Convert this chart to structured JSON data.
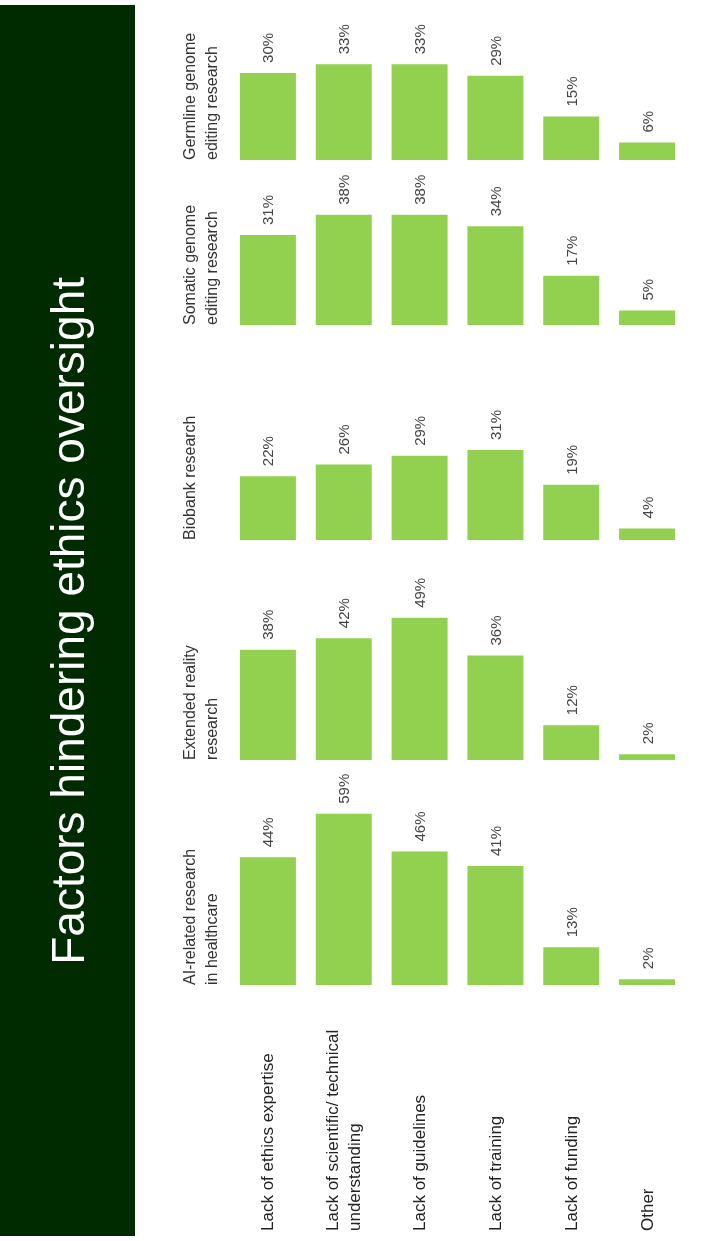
{
  "chart_data": [
    {
      "type": "other",
      "title": "Factors hindering ethics oversight"
    },
    {
      "type": "bar",
      "title": "AI-related research in healthcare",
      "categories": [
        "Lack of ethics expertise",
        "Lack of scientific/ technical understanding",
        "Lack of guidelines",
        "Lack of training",
        "Lack of funding",
        "Other"
      ],
      "values": [
        44,
        59,
        46,
        41,
        13,
        2
      ],
      "value_labels": [
        "44%",
        "59%",
        "46%",
        "41%",
        "13%",
        "2%"
      ],
      "color": "#92d050",
      "tick_labels": "x"
    },
    {
      "type": "bar",
      "title": "Extended reality research",
      "categories": [
        null,
        null,
        null,
        null,
        null,
        null
      ],
      "values": [
        38,
        42,
        49,
        36,
        12,
        2
      ],
      "value_labels": [
        "38%",
        "42%",
        "49%",
        "36%",
        "12%",
        "2%"
      ],
      "color": "#92d050",
      "tick_labels": false
    },
    {
      "type": "bar",
      "title": "Biobank research",
      "categories": [
        null,
        null,
        null,
        null,
        null,
        null
      ],
      "values": [
        22,
        26,
        29,
        31,
        19,
        4
      ],
      "value_labels": [
        "22%",
        "26%",
        "29%",
        "31%",
        "19%",
        "4%"
      ],
      "color": "#92d050",
      "tick_labels": false
    },
    {
      "type": "bar",
      "title": "Somatic genome editing research",
      "categories": [
        null,
        null,
        null,
        null,
        null,
        null
      ],
      "values": [
        31,
        38,
        38,
        34,
        17,
        5
      ],
      "value_labels": [
        "31%",
        "38%",
        "38%",
        "34%",
        "17%",
        "5%"
      ],
      "color": "#92d050",
      "tick_labels": false
    },
    {
      "type": "bar",
      "title": "Germline genome editing research",
      "categories": [
        null,
        null,
        null,
        null,
        null,
        null
      ],
      "values": [
        30,
        33,
        33,
        29,
        15,
        6
      ],
      "value_labels": [
        "30%",
        "33%",
        "33%",
        "29%",
        "15%",
        "6%"
      ],
      "color": "#92d050",
      "tick_labels": false
    }
  ]
}
